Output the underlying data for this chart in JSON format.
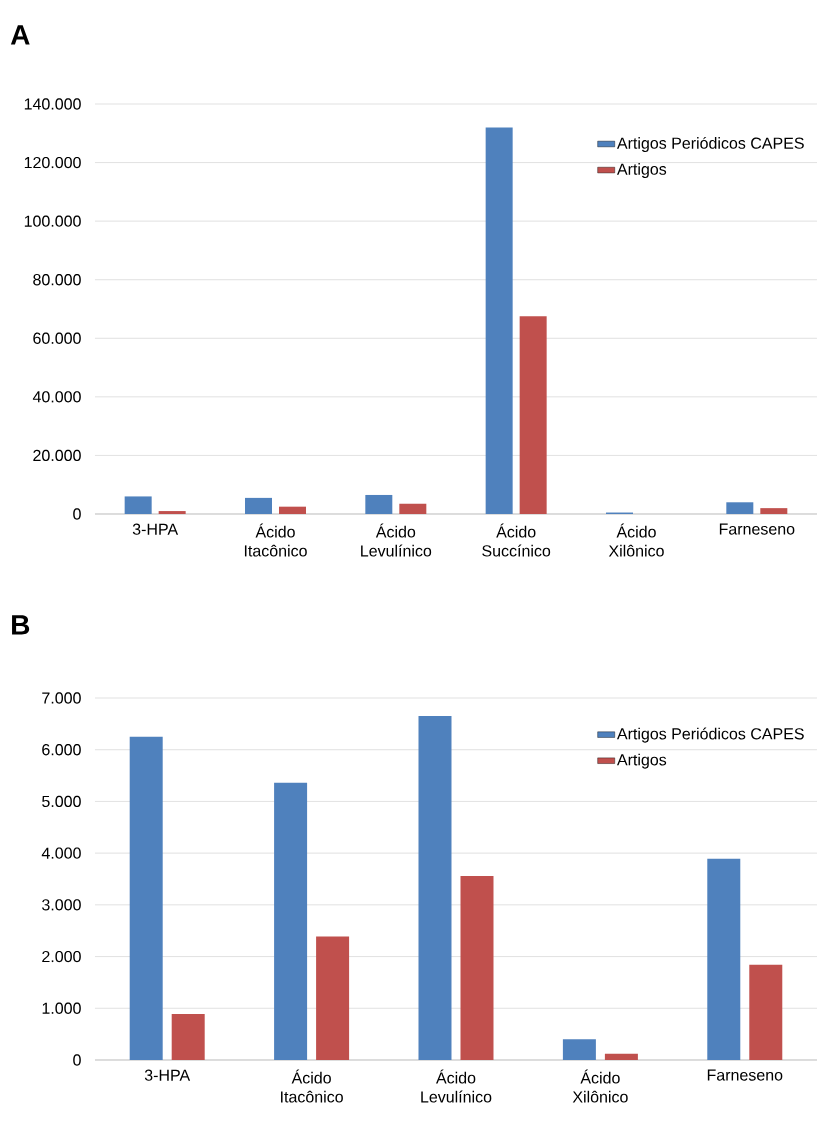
{
  "chart_data": [
    {
      "type": "bar",
      "title": "A",
      "categories": [
        "3-HPA",
        "Ácido Itacônico",
        "Ácido Levulínico",
        "Ácido Succínico",
        "Ácido Xilônico",
        "Farneseno"
      ],
      "series": [
        {
          "name": "Artigos Periódicos CAPES",
          "color": "#4f81bd",
          "values": [
            6000,
            5500,
            6500,
            132000,
            500,
            4000
          ]
        },
        {
          "name": "Artigos",
          "color": "#c0504d",
          "values": [
            1000,
            2500,
            3500,
            67500,
            null,
            2000
          ]
        }
      ],
      "ylim": [
        0,
        140000
      ],
      "yticks": [
        0,
        {
          "value": 20000,
          "label": "20.000"
        },
        {
          "value": 40000,
          "label": "40.000"
        },
        {
          "value": 60000,
          "label": "60.000"
        },
        {
          "value": 80000,
          "label": "80.000"
        },
        {
          "value": 100000,
          "label": "100.000"
        },
        {
          "value": 120000,
          "label": "120.000"
        },
        {
          "value": 140000,
          "label": "140.000"
        }
      ],
      "grid": "y",
      "legend": "top right"
    },
    {
      "type": "bar",
      "title": "B",
      "categories": [
        "3-HPA",
        "Ácido Itacônico",
        "Ácido Levulínico",
        "Ácido Xilônico",
        "Farneseno"
      ],
      "series": [
        {
          "name": "Artigos Periódicos CAPES",
          "color": "#4f81bd",
          "values": [
            6250,
            5360,
            6650,
            400,
            3890
          ]
        },
        {
          "name": "Artigos",
          "color": "#c0504d",
          "values": [
            890,
            2390,
            3560,
            120,
            1840
          ]
        }
      ],
      "ylim": [
        0,
        7000
      ],
      "yticks": [
        0,
        {
          "value": 1000,
          "label": "1.000"
        },
        {
          "value": 2000,
          "label": "2.000"
        },
        {
          "value": 3000,
          "label": "3.000"
        },
        {
          "value": 4000,
          "label": "4.000"
        },
        {
          "value": 5000,
          "label": "5.000"
        },
        {
          "value": 6000,
          "label": "6.000"
        },
        {
          "value": 7000,
          "label": "7.000"
        }
      ],
      "grid": "y",
      "legend": "top right"
    }
  ]
}
